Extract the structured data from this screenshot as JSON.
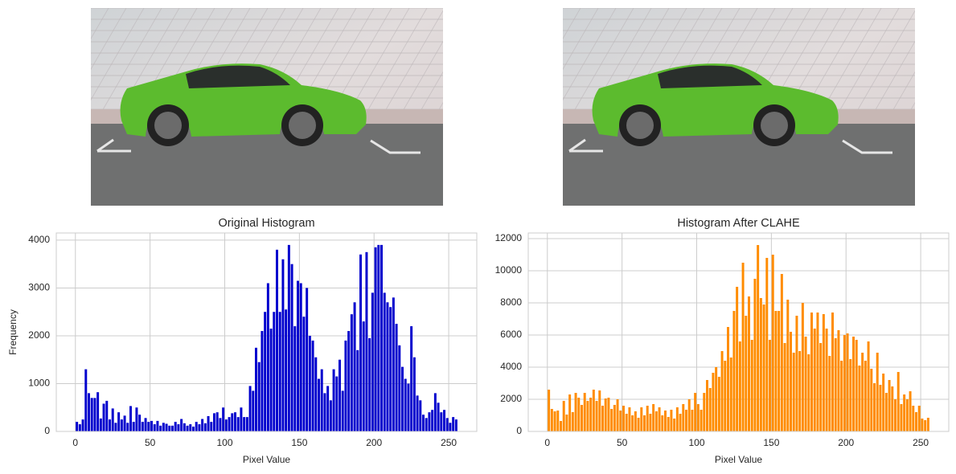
{
  "chart_data": [
    {
      "type": "histogram",
      "title": "Original Histogram",
      "xlabel": "Pixel Value",
      "ylabel": "Frequency",
      "color": "#0000cd",
      "grid": true,
      "xlim": [
        -12.8,
        268.8
      ],
      "ylim": [
        0,
        4150
      ],
      "xticks": [
        0,
        50,
        100,
        150,
        200,
        250
      ],
      "yticks": [
        0,
        1000,
        2000,
        3000,
        4000
      ],
      "bins": [
        0,
        2,
        4,
        6,
        8,
        10,
        12,
        14,
        16,
        18,
        20,
        22,
        24,
        26,
        28,
        30,
        32,
        34,
        36,
        38,
        40,
        42,
        44,
        46,
        48,
        50,
        52,
        54,
        56,
        58,
        60,
        62,
        64,
        66,
        68,
        70,
        72,
        74,
        76,
        78,
        80,
        82,
        84,
        86,
        88,
        90,
        92,
        94,
        96,
        98,
        100,
        102,
        104,
        106,
        108,
        110,
        112,
        114,
        116,
        118,
        120,
        122,
        124,
        126,
        128,
        130,
        132,
        134,
        136,
        138,
        140,
        142,
        144,
        146,
        148,
        150,
        152,
        154,
        156,
        158,
        160,
        162,
        164,
        166,
        168,
        170,
        172,
        174,
        176,
        178,
        180,
        182,
        184,
        186,
        188,
        190,
        192,
        194,
        196,
        198,
        200,
        202,
        204,
        206,
        208,
        210,
        212,
        214,
        216,
        218,
        220,
        222,
        224,
        226,
        228,
        230,
        232,
        234,
        236,
        238,
        240,
        242,
        244,
        246,
        248,
        250,
        252,
        254,
        256
      ],
      "values": [
        200,
        150,
        250,
        1300,
        800,
        700,
        700,
        820,
        270,
        580,
        640,
        250,
        480,
        180,
        400,
        250,
        330,
        180,
        530,
        200,
        500,
        350,
        200,
        280,
        200,
        220,
        150,
        220,
        120,
        180,
        160,
        120,
        120,
        200,
        150,
        260,
        170,
        120,
        150,
        100,
        200,
        150,
        260,
        170,
        320,
        200,
        380,
        400,
        280,
        500,
        250,
        300,
        380,
        400,
        300,
        500,
        300,
        300,
        950,
        850,
        1750,
        1450,
        2100,
        2500,
        3100,
        2150,
        2500,
        3800,
        2500,
        3600,
        2550,
        3900,
        3500,
        2200,
        3150,
        3100,
        2400,
        3000,
        2000,
        1900,
        1550,
        1100,
        1300,
        800,
        950,
        650,
        1300,
        1150,
        1500,
        850,
        1900,
        2100,
        2450,
        2700,
        1700,
        3700,
        2300,
        3750,
        1950,
        2900,
        3850,
        3900,
        3900,
        2900,
        2700,
        2600,
        2800,
        2250,
        1800,
        1350,
        1100,
        1000,
        2200,
        1550,
        750,
        650,
        350,
        280,
        400,
        450,
        800,
        600,
        400,
        450,
        280,
        180,
        300,
        250
      ]
    },
    {
      "type": "histogram",
      "title": "Histogram After CLAHE",
      "xlabel": "Pixel Value",
      "color": "#ff8c00",
      "grid": true,
      "xlim": [
        -12.8,
        268.8
      ],
      "ylim": [
        0,
        12350
      ],
      "xticks": [
        0,
        50,
        100,
        150,
        200,
        250
      ],
      "yticks": [
        0,
        2000,
        4000,
        6000,
        8000,
        10000,
        12000
      ],
      "bins": [
        0,
        2,
        4,
        6,
        8,
        10,
        12,
        14,
        16,
        18,
        20,
        22,
        24,
        26,
        28,
        30,
        32,
        34,
        36,
        38,
        40,
        42,
        44,
        46,
        48,
        50,
        52,
        54,
        56,
        58,
        60,
        62,
        64,
        66,
        68,
        70,
        72,
        74,
        76,
        78,
        80,
        82,
        84,
        86,
        88,
        90,
        92,
        94,
        96,
        98,
        100,
        102,
        104,
        106,
        108,
        110,
        112,
        114,
        116,
        118,
        120,
        122,
        124,
        126,
        128,
        130,
        132,
        134,
        136,
        138,
        140,
        142,
        144,
        146,
        148,
        150,
        152,
        154,
        156,
        158,
        160,
        162,
        164,
        166,
        168,
        170,
        172,
        174,
        176,
        178,
        180,
        182,
        184,
        186,
        188,
        190,
        192,
        194,
        196,
        198,
        200,
        202,
        204,
        206,
        208,
        210,
        212,
        214,
        216,
        218,
        220,
        222,
        224,
        226,
        228,
        230,
        232,
        234,
        236,
        238,
        240,
        242,
        244,
        246,
        248,
        250,
        252,
        254,
        256
      ],
      "values": [
        2600,
        1400,
        1250,
        1300,
        650,
        1900,
        1050,
        2300,
        1200,
        2400,
        2100,
        1650,
        2400,
        1900,
        2100,
        2600,
        1900,
        2550,
        1600,
        2050,
        2100,
        1400,
        1650,
        2000,
        1300,
        1600,
        1100,
        1500,
        1000,
        1250,
        850,
        1500,
        1000,
        1600,
        1100,
        1700,
        1250,
        1500,
        1000,
        1300,
        900,
        1350,
        800,
        1500,
        1100,
        1700,
        1350,
        2000,
        1350,
        2400,
        1700,
        1350,
        2400,
        3200,
        2700,
        3650,
        4000,
        3400,
        5000,
        4400,
        6500,
        4600,
        7500,
        9000,
        5600,
        10500,
        7200,
        8400,
        5700,
        9500,
        11600,
        8300,
        7900,
        10800,
        5700,
        11000,
        7500,
        7500,
        9800,
        5500,
        8200,
        6200,
        4900,
        7200,
        5000,
        8000,
        5900,
        4800,
        7400,
        6400,
        7400,
        5500,
        7300,
        6400,
        4700,
        7400,
        5800,
        6300,
        4400,
        6000,
        6100,
        4500,
        5900,
        5700,
        4100,
        4900,
        4400,
        5600,
        3900,
        3000,
        4900,
        2900,
        3600,
        2400,
        3200,
        2800,
        2000,
        3700,
        1700,
        2300,
        2000,
        2500,
        1600,
        1200,
        1600,
        800,
        700,
        850
      ]
    }
  ]
}
